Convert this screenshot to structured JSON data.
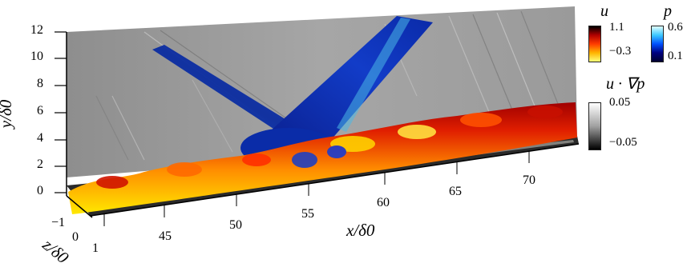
{
  "axes": {
    "y_label": "y/δ0",
    "y_ticks": [
      "12",
      "10",
      "8",
      "6",
      "4",
      "2",
      "0"
    ],
    "x_label": "x/δ0",
    "x_ticks": [
      "45",
      "50",
      "55",
      "60",
      "65",
      "70"
    ],
    "z_label": "z/δ0",
    "z_ticks": [
      "−1",
      "0",
      "1"
    ]
  },
  "colorbars": {
    "u": {
      "title": "u",
      "max": "1.1",
      "min": "−0.3",
      "colors": [
        "#000000",
        "#b00000",
        "#ff3c00",
        "#ffb400",
        "#ffff78"
      ]
    },
    "p": {
      "title": "p",
      "max": "0.6",
      "min": "0.1",
      "colors": [
        "#e0ffff",
        "#3cc8ff",
        "#0050ff",
        "#000080",
        "#000030"
      ]
    },
    "grad": {
      "title": "u · ∇p",
      "max": "0.05",
      "min": "−0.05",
      "colors": [
        "#ffffff",
        "#a0a0a0",
        "#000000"
      ]
    }
  }
}
